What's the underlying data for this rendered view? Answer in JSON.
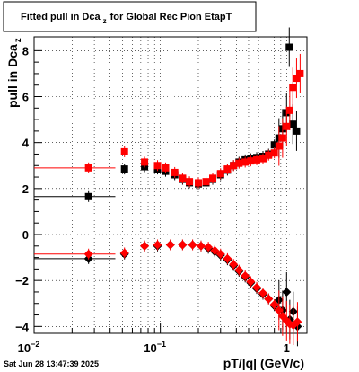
{
  "canvas": {
    "background": "#ffffff"
  },
  "chart_data": {
    "type": "scatter",
    "title": "Fitted pull in Dca",
    "title_subscript": "z",
    "title_suffix": "for Global Rec Pion EtapT",
    "xlabel": "pT/|q| (GeV/c)",
    "ylabel": "pull in Dca",
    "ylabel_subscript": "z",
    "x_scale": "log",
    "xlim": [
      0.01,
      1.45
    ],
    "ylim": [
      -4.3,
      8.6
    ],
    "grid": true,
    "x_ticks": [
      {
        "value": 0.01,
        "base": "10",
        "exp": "−2"
      },
      {
        "value": 0.1,
        "base": "10",
        "exp": "−1"
      },
      {
        "value": 1,
        "base": "1",
        "exp": ""
      }
    ],
    "y_ticks": [
      -4,
      -2,
      0,
      2,
      4,
      6,
      8
    ],
    "timestamp": "Sat Jun 28 13:47:39 2025",
    "series": [
      {
        "marker": "square",
        "color": "#000000",
        "points": [
          [
            0.027,
            1.65
          ],
          [
            0.052,
            2.85
          ],
          [
            0.075,
            2.95
          ],
          [
            0.095,
            2.85
          ],
          [
            0.11,
            2.75
          ],
          [
            0.13,
            2.6
          ],
          [
            0.15,
            2.4
          ],
          [
            0.17,
            2.25
          ],
          [
            0.2,
            2.2
          ],
          [
            0.23,
            2.25
          ],
          [
            0.26,
            2.4
          ],
          [
            0.3,
            2.6
          ],
          [
            0.34,
            2.8
          ],
          [
            0.38,
            3.0
          ],
          [
            0.42,
            3.15
          ],
          [
            0.47,
            3.25
          ],
          [
            0.52,
            3.3
          ],
          [
            0.58,
            3.35
          ],
          [
            0.65,
            3.4
          ],
          [
            0.72,
            3.5
          ],
          [
            0.8,
            3.9
          ],
          [
            0.87,
            4.2
          ],
          [
            0.93,
            4.6
          ],
          [
            1.0,
            5.3
          ],
          [
            1.05,
            8.15
          ],
          [
            1.12,
            4.8
          ],
          [
            1.2,
            4.5
          ]
        ]
      },
      {
        "marker": "square",
        "color": "#ff0000",
        "points": [
          [
            0.027,
            2.9
          ],
          [
            0.052,
            3.6
          ],
          [
            0.075,
            3.15
          ],
          [
            0.095,
            3.0
          ],
          [
            0.11,
            2.9
          ],
          [
            0.13,
            2.7
          ],
          [
            0.15,
            2.45
          ],
          [
            0.17,
            2.3
          ],
          [
            0.2,
            2.25
          ],
          [
            0.23,
            2.3
          ],
          [
            0.26,
            2.45
          ],
          [
            0.3,
            2.65
          ],
          [
            0.34,
            2.85
          ],
          [
            0.38,
            3.0
          ],
          [
            0.42,
            3.1
          ],
          [
            0.47,
            3.15
          ],
          [
            0.52,
            3.2
          ],
          [
            0.58,
            3.25
          ],
          [
            0.65,
            3.3
          ],
          [
            0.72,
            3.45
          ],
          [
            0.8,
            3.55
          ],
          [
            0.87,
            3.85
          ],
          [
            0.93,
            4.2
          ],
          [
            1.0,
            4.7
          ],
          [
            1.06,
            5.4
          ],
          [
            1.12,
            6.4
          ],
          [
            1.2,
            6.8
          ],
          [
            1.28,
            7.0
          ]
        ]
      },
      {
        "marker": "diamond",
        "color": "#000000",
        "points": [
          [
            0.027,
            -1.05
          ],
          [
            0.052,
            -0.85
          ],
          [
            0.075,
            -0.5
          ],
          [
            0.095,
            -0.5
          ],
          [
            0.12,
            -0.45
          ],
          [
            0.15,
            -0.45
          ],
          [
            0.18,
            -0.45
          ],
          [
            0.21,
            -0.5
          ],
          [
            0.24,
            -0.6
          ],
          [
            0.27,
            -0.75
          ],
          [
            0.3,
            -0.9
          ],
          [
            0.34,
            -1.1
          ],
          [
            0.38,
            -1.35
          ],
          [
            0.42,
            -1.6
          ],
          [
            0.47,
            -1.85
          ],
          [
            0.52,
            -2.1
          ],
          [
            0.58,
            -2.35
          ],
          [
            0.65,
            -2.6
          ],
          [
            0.72,
            -2.8
          ],
          [
            0.8,
            -3.1
          ],
          [
            0.87,
            -2.85
          ],
          [
            0.93,
            -3.3
          ],
          [
            1.0,
            -2.5
          ],
          [
            1.06,
            -3.7
          ],
          [
            1.13,
            -3.35
          ],
          [
            1.22,
            -4.0
          ]
        ]
      },
      {
        "marker": "diamond",
        "color": "#ff0000",
        "points": [
          [
            0.027,
            -0.85
          ],
          [
            0.052,
            -0.8
          ],
          [
            0.075,
            -0.5
          ],
          [
            0.095,
            -0.45
          ],
          [
            0.12,
            -0.45
          ],
          [
            0.15,
            -0.45
          ],
          [
            0.18,
            -0.45
          ],
          [
            0.21,
            -0.5
          ],
          [
            0.24,
            -0.55
          ],
          [
            0.27,
            -0.7
          ],
          [
            0.3,
            -0.85
          ],
          [
            0.34,
            -1.05
          ],
          [
            0.38,
            -1.3
          ],
          [
            0.42,
            -1.55
          ],
          [
            0.47,
            -1.8
          ],
          [
            0.52,
            -2.05
          ],
          [
            0.58,
            -2.3
          ],
          [
            0.65,
            -2.55
          ],
          [
            0.72,
            -2.8
          ],
          [
            0.8,
            -3.05
          ],
          [
            0.87,
            -3.3
          ],
          [
            0.93,
            -3.55
          ],
          [
            1.0,
            -3.75
          ],
          [
            1.06,
            -3.9
          ],
          [
            1.13,
            -3.95
          ],
          [
            1.22,
            -3.8
          ]
        ]
      }
    ]
  }
}
